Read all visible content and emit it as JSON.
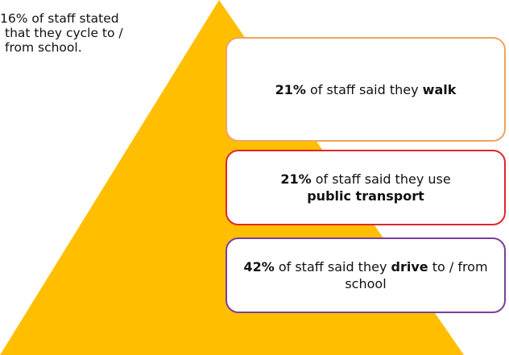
{
  "side_note": "16% of staff stated that they cycle to / from school.",
  "boxes": {
    "walk": {
      "pct": "21%",
      "text": " of staff said they ",
      "highlight": "walk",
      "tail": ""
    },
    "transport": {
      "pct": "21%",
      "text": " of staff said they use ",
      "highlight": "public transport",
      "tail": ""
    },
    "drive": {
      "pct": "42%",
      "text": " of staff said they ",
      "highlight": "drive",
      "tail": " to / from school"
    }
  },
  "colors": {
    "pyramid": "#ffbf00",
    "walk_border": "#f0a35e",
    "transport_border": "#e0262c",
    "drive_border": "#7a3f9a"
  }
}
